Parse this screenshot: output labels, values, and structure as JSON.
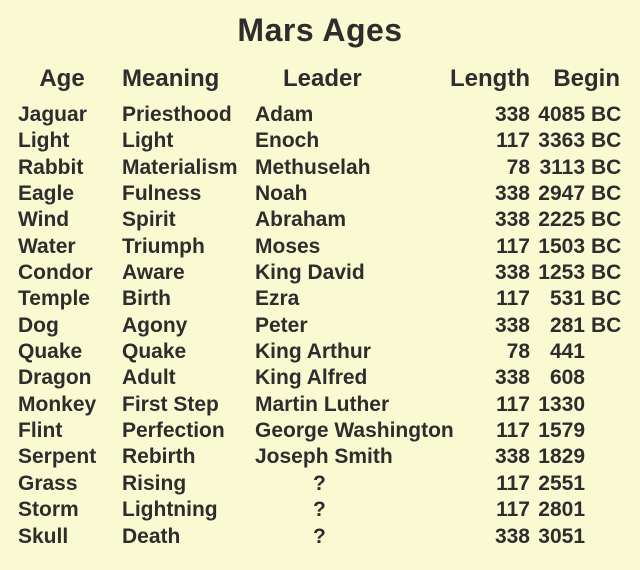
{
  "colors": {
    "background": "#FAFAD2",
    "text": "#2D2D2D"
  },
  "chart_data": {
    "type": "table",
    "title": "Mars Ages",
    "columns": [
      "Age",
      "Meaning",
      "Leader",
      "Length",
      "Begin"
    ],
    "rows": [
      {
        "age": "Jaguar",
        "meaning": "Priesthood",
        "leader": "Adam",
        "length": 338,
        "begin": "4085 BC"
      },
      {
        "age": "Light",
        "meaning": "Light",
        "leader": "Enoch",
        "length": 117,
        "begin": "3363 BC"
      },
      {
        "age": "Rabbit",
        "meaning": "Materialism",
        "leader": "Methuselah",
        "length": 78,
        "begin": "3113 BC"
      },
      {
        "age": "Eagle",
        "meaning": "Fulness",
        "leader": "Noah",
        "length": 338,
        "begin": "2947 BC"
      },
      {
        "age": "Wind",
        "meaning": "Spirit",
        "leader": "Abraham",
        "length": 338,
        "begin": "2225 BC"
      },
      {
        "age": "Water",
        "meaning": "Triumph",
        "leader": "Moses",
        "length": 117,
        "begin": "1503 BC"
      },
      {
        "age": "Condor",
        "meaning": "Aware",
        "leader": "King David",
        "length": 338,
        "begin": "1253 BC"
      },
      {
        "age": "Temple",
        "meaning": "Birth",
        "leader": "Ezra",
        "length": 117,
        "begin": "531 BC"
      },
      {
        "age": "Dog",
        "meaning": "Agony",
        "leader": "Peter",
        "length": 338,
        "begin": "281 BC"
      },
      {
        "age": "Quake",
        "meaning": "Quake",
        "leader": "King Arthur",
        "length": 78,
        "begin": "441"
      },
      {
        "age": "Dragon",
        "meaning": "Adult",
        "leader": "King Alfred",
        "length": 338,
        "begin": "608"
      },
      {
        "age": "Monkey",
        "meaning": "First Step",
        "leader": "Martin Luther",
        "length": 117,
        "begin": "1330"
      },
      {
        "age": "Flint",
        "meaning": "Perfection",
        "leader": "George Washington",
        "length": 117,
        "begin": "1579"
      },
      {
        "age": "Serpent",
        "meaning": "Rebirth",
        "leader": "Joseph Smith",
        "length": 338,
        "begin": "1829"
      },
      {
        "age": "Grass",
        "meaning": "Rising",
        "leader": "?",
        "length": 117,
        "begin": "2551"
      },
      {
        "age": "Storm",
        "meaning": "Lightning",
        "leader": "?",
        "length": 117,
        "begin": "2801"
      },
      {
        "age": "Skull",
        "meaning": "Death",
        "leader": "?",
        "length": 338,
        "begin": "3051"
      }
    ]
  }
}
